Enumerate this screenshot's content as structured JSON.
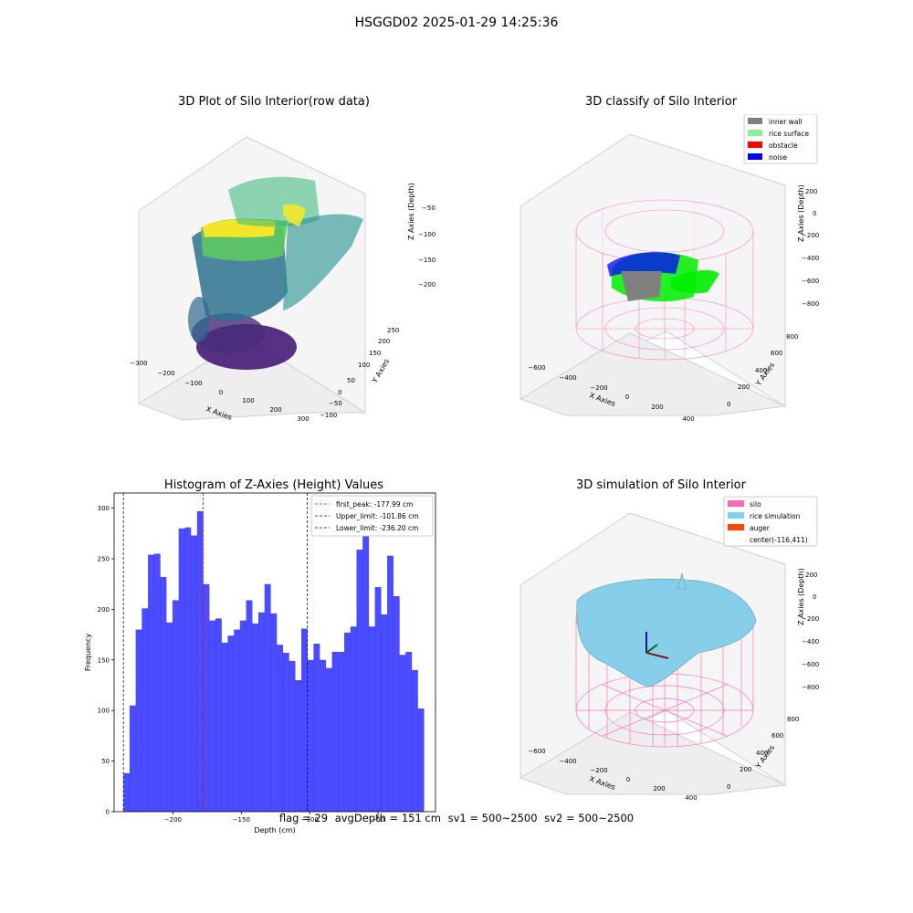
{
  "suptitle": "HSGGD02 2025-01-29 14:25:36",
  "panels": {
    "raw": {
      "title": "3D Plot of Silo Interior(row data)",
      "xlabel": "X Axies",
      "ylabel": "Y Axies",
      "zlabel": "Z Axies (Depth)",
      "xticks": [
        "−300",
        "−200",
        "−100",
        "0",
        "100",
        "200",
        "300"
      ],
      "yticks": [
        "−100",
        "−50",
        "0",
        "50",
        "100",
        "150",
        "200",
        "250"
      ],
      "zticks": [
        "−50",
        "−100",
        "−150",
        "−200"
      ]
    },
    "classify": {
      "title": "3D classify of Silo Interior",
      "xlabel": "X Axies",
      "ylabel": "Y Axies",
      "zlabel": "Z Axies (Depth)",
      "xticks": [
        "−600",
        "−400",
        "−200",
        "0",
        "200",
        "400"
      ],
      "yticks": [
        "0",
        "200",
        "400",
        "600",
        "800"
      ],
      "zticks": [
        "200",
        "0",
        "−200",
        "−400",
        "−600",
        "−800"
      ],
      "legend": [
        {
          "label": "inner wall",
          "color": "#808080"
        },
        {
          "label": "rice surface",
          "color": "#90ee90"
        },
        {
          "label": "obstacle",
          "color": "#ff0000"
        },
        {
          "label": "noise",
          "color": "#0000ff"
        }
      ]
    },
    "simulation": {
      "title": "3D simulation of Silo Interior",
      "xlabel": "X Axies",
      "ylabel": "Y Axies",
      "zlabel": "Z Axies (Depth)",
      "xticks": [
        "−600",
        "−400",
        "−200",
        "0",
        "200",
        "400"
      ],
      "yticks": [
        "0",
        "200",
        "400",
        "600",
        "800"
      ],
      "zticks": [
        "200",
        "0",
        "−200",
        "−400",
        "−600",
        "−800"
      ],
      "legend": [
        {
          "label": "silo",
          "color": "#ff69b4"
        },
        {
          "label": "rice simulation",
          "color": "#87ceeb"
        },
        {
          "label": "auger",
          "color": "#ff4500"
        },
        {
          "label": "center(-116,411)",
          "color": ""
        }
      ]
    }
  },
  "status": {
    "flag": "flag = 29",
    "avg_depth": "avgDepth = 151 cm",
    "sv1": "sv1 = 500~2500",
    "sv2": "sv2 = 500~2500"
  },
  "chart_data": {
    "type": "bar",
    "title": "Histogram of Z-Axies (Height) Values",
    "xlabel": "Depth (cm)",
    "ylabel": "Frequency",
    "xlim": [
      -243,
      -8
    ],
    "ylim": [
      0,
      315
    ],
    "xticks": [
      -200,
      -150,
      -100,
      -50
    ],
    "xtick_labels": [
      "−200",
      "−150",
      "−100",
      "−50"
    ],
    "yticks": [
      0,
      50,
      100,
      150,
      200,
      250,
      300
    ],
    "color": "#0000ff",
    "bin_start": -236.2,
    "bin_width": 4.485,
    "values": [
      38,
      105,
      180,
      201,
      254,
      255,
      232,
      187,
      209,
      280,
      281,
      273,
      297,
      225,
      189,
      191,
      167,
      174,
      180,
      189,
      209,
      186,
      197,
      225,
      196,
      165,
      157,
      149,
      130,
      181,
      150,
      166,
      150,
      142,
      158,
      158,
      177,
      183,
      259,
      303,
      183,
      222,
      195,
      253,
      213,
      155,
      158,
      140,
      102
    ],
    "lines": [
      {
        "label": "first_peak: -177.99 cm",
        "x": -177.99,
        "color": "#ff0000"
      },
      {
        "label": "Upper_limit: -101.86 cm",
        "x": -101.86,
        "color": "#0000cc"
      },
      {
        "label": "Lower_limit: -236.20 cm",
        "x": -236.2,
        "color": "#0000cc"
      }
    ]
  }
}
